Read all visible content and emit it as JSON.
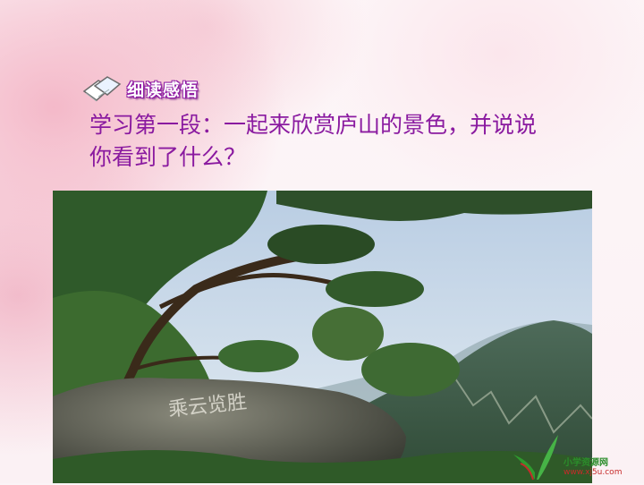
{
  "section_tag": {
    "label": "细读感悟",
    "icon": "book-icon"
  },
  "heading": {
    "line1": "学习第一段：一起来欣赏庐山的景色，并说说",
    "line2": "你看到了什么？"
  },
  "photo": {
    "icon": "mountain-photo"
  },
  "watermark": {
    "name": "小学资源网",
    "url": "www.xj5u.com",
    "icon": "sprout-logo-icon"
  },
  "colors": {
    "heading": "#8a1aa0",
    "tag_outline": "#8f1aa3",
    "background_pink": "#f4b9c9"
  }
}
